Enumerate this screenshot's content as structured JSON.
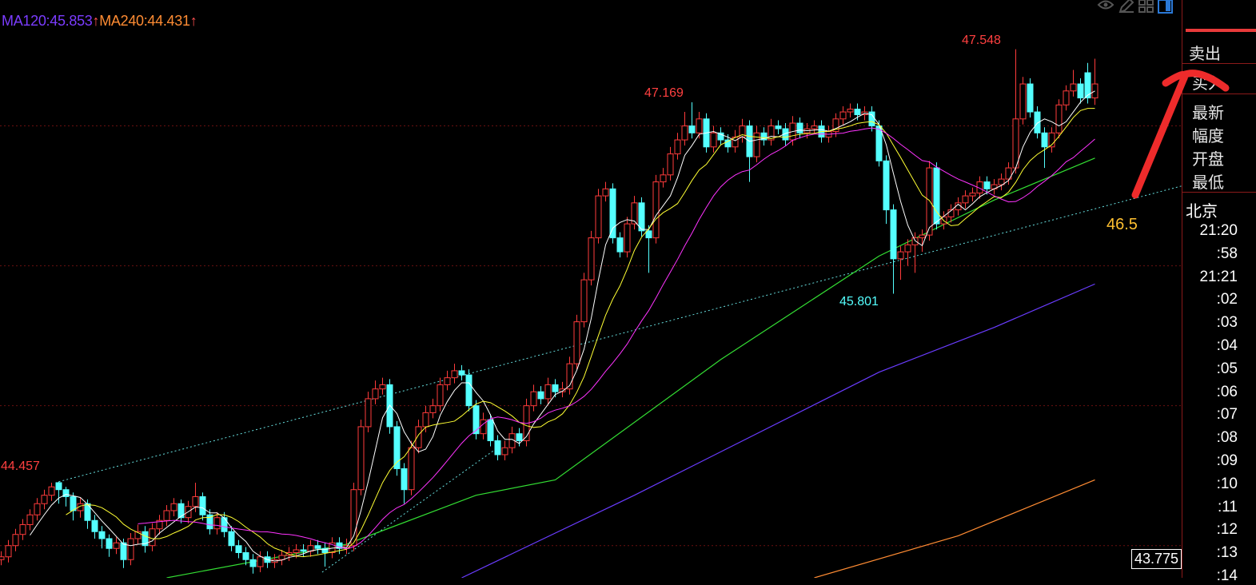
{
  "chart_data": {
    "type": "candlestick",
    "ylim": [
      43.77,
      47.9
    ],
    "grid_prices": [
      47,
      46,
      45,
      44
    ],
    "up_color": "#ff3b3b",
    "down_color": "#54ffff",
    "ohlc": [
      [
        43.9,
        43.96,
        43.86,
        43.92
      ],
      [
        43.92,
        44.04,
        43.88,
        44.0
      ],
      [
        44.0,
        44.12,
        43.96,
        44.08
      ],
      [
        44.08,
        44.19,
        44.04,
        44.15
      ],
      [
        44.15,
        44.26,
        44.11,
        44.22
      ],
      [
        44.22,
        44.34,
        44.18,
        44.3
      ],
      [
        44.3,
        44.4,
        44.26,
        44.36
      ],
      [
        44.36,
        44.45,
        44.32,
        44.42
      ],
      [
        44.45,
        44.457,
        44.3,
        44.4
      ],
      [
        44.4,
        44.42,
        44.28,
        44.35
      ],
      [
        44.35,
        44.38,
        44.18,
        44.25
      ],
      [
        44.25,
        44.34,
        44.2,
        44.3
      ],
      [
        44.3,
        44.33,
        44.12,
        44.18
      ],
      [
        44.18,
        44.22,
        44.05,
        44.1
      ],
      [
        44.1,
        44.14,
        43.98,
        44.05
      ],
      [
        44.05,
        44.08,
        43.92,
        43.98
      ],
      [
        43.98,
        44.06,
        43.94,
        44.02
      ],
      [
        44.02,
        44.05,
        43.84,
        43.9
      ],
      [
        43.9,
        44.09,
        43.86,
        44.05
      ],
      [
        44.05,
        44.15,
        44.01,
        44.1
      ],
      [
        44.1,
        44.14,
        43.95,
        44.0
      ],
      [
        44.0,
        44.16,
        43.96,
        44.12
      ],
      [
        44.12,
        44.22,
        44.08,
        44.18
      ],
      [
        44.18,
        44.29,
        44.14,
        44.25
      ],
      [
        44.25,
        44.34,
        44.21,
        44.3
      ],
      [
        44.3,
        44.33,
        44.16,
        44.2
      ],
      [
        44.2,
        44.32,
        44.16,
        44.28
      ],
      [
        44.28,
        44.45,
        44.24,
        44.35
      ],
      [
        44.35,
        44.38,
        44.18,
        44.22
      ],
      [
        44.22,
        44.26,
        44.08,
        44.12
      ],
      [
        44.12,
        44.24,
        44.08,
        44.2
      ],
      [
        44.2,
        44.24,
        44.06,
        44.1
      ],
      [
        44.1,
        44.14,
        43.96,
        44.0
      ],
      [
        44.0,
        44.04,
        43.91,
        43.95
      ],
      [
        43.95,
        43.99,
        43.86,
        43.9
      ],
      [
        43.9,
        43.94,
        43.8,
        43.85
      ],
      [
        43.85,
        43.96,
        43.81,
        43.92
      ],
      [
        43.92,
        43.96,
        43.84,
        43.88
      ],
      [
        43.88,
        43.94,
        43.84,
        43.9
      ],
      [
        43.9,
        43.97,
        43.86,
        43.93
      ],
      [
        43.93,
        43.99,
        43.89,
        43.95
      ],
      [
        43.95,
        44.01,
        43.91,
        43.97
      ],
      [
        43.97,
        44.01,
        43.92,
        43.96
      ],
      [
        43.96,
        44.04,
        43.92,
        44.0
      ],
      [
        44.0,
        44.04,
        43.94,
        43.98
      ],
      [
        43.98,
        44.02,
        43.85,
        43.95
      ],
      [
        43.95,
        44.06,
        43.91,
        44.02
      ],
      [
        44.02,
        44.06,
        43.94,
        43.98
      ],
      [
        43.98,
        44.05,
        43.94,
        44.0
      ],
      [
        44.0,
        44.45,
        43.96,
        44.4
      ],
      [
        44.4,
        44.9,
        44.36,
        44.85
      ],
      [
        44.85,
        45.1,
        44.81,
        45.05
      ],
      [
        45.05,
        45.18,
        45.01,
        45.12
      ],
      [
        45.12,
        45.2,
        45.08,
        45.15
      ],
      [
        45.15,
        45.19,
        44.8,
        44.85
      ],
      [
        44.85,
        44.89,
        44.5,
        44.55
      ],
      [
        44.55,
        44.59,
        44.3,
        44.4
      ],
      [
        44.4,
        44.75,
        44.36,
        44.7
      ],
      [
        44.7,
        44.9,
        44.66,
        44.85
      ],
      [
        44.85,
        45.0,
        44.81,
        44.95
      ],
      [
        44.95,
        45.05,
        44.91,
        45.0
      ],
      [
        45.0,
        45.2,
        44.96,
        45.15
      ],
      [
        45.15,
        45.25,
        45.11,
        45.2
      ],
      [
        45.2,
        45.3,
        45.16,
        45.25
      ],
      [
        45.25,
        45.29,
        45.18,
        45.22
      ],
      [
        45.22,
        45.26,
        44.96,
        45.0
      ],
      [
        45.0,
        45.04,
        44.76,
        44.8
      ],
      [
        44.8,
        44.95,
        44.76,
        44.9
      ],
      [
        44.9,
        44.94,
        44.71,
        44.75
      ],
      [
        44.75,
        44.79,
        44.61,
        44.65
      ],
      [
        44.65,
        44.75,
        44.61,
        44.7
      ],
      [
        44.7,
        44.85,
        44.66,
        44.8
      ],
      [
        44.8,
        44.84,
        44.71,
        44.75
      ],
      [
        44.75,
        45.05,
        44.71,
        45.0
      ],
      [
        45.0,
        45.15,
        44.96,
        45.1
      ],
      [
        45.1,
        45.14,
        45.01,
        45.05
      ],
      [
        45.05,
        45.2,
        45.01,
        45.15
      ],
      [
        45.15,
        45.19,
        45.06,
        45.1
      ],
      [
        45.1,
        45.17,
        45.06,
        45.12
      ],
      [
        45.12,
        45.35,
        45.08,
        45.3
      ],
      [
        45.3,
        45.65,
        45.26,
        45.6
      ],
      [
        45.6,
        45.95,
        45.56,
        45.9
      ],
      [
        45.9,
        46.25,
        45.86,
        46.2
      ],
      [
        46.2,
        46.55,
        46.16,
        46.5
      ],
      [
        46.5,
        46.6,
        46.46,
        46.55
      ],
      [
        46.55,
        46.59,
        46.16,
        46.2
      ],
      [
        46.2,
        46.24,
        46.06,
        46.1
      ],
      [
        46.1,
        46.35,
        46.06,
        46.3
      ],
      [
        46.3,
        46.5,
        46.26,
        46.45
      ],
      [
        46.45,
        46.49,
        46.21,
        46.25
      ],
      [
        46.25,
        46.29,
        45.95,
        46.2
      ],
      [
        46.2,
        46.65,
        46.16,
        46.6
      ],
      [
        46.6,
        46.7,
        46.56,
        46.65
      ],
      [
        46.65,
        46.85,
        46.61,
        46.8
      ],
      [
        46.8,
        46.95,
        46.76,
        46.9
      ],
      [
        46.9,
        47.1,
        46.86,
        47.0
      ],
      [
        47.0,
        47.169,
        46.91,
        46.95
      ],
      [
        46.95,
        47.1,
        46.91,
        47.05
      ],
      [
        47.05,
        47.09,
        46.81,
        46.85
      ],
      [
        46.85,
        47.0,
        46.81,
        46.95
      ],
      [
        46.95,
        46.99,
        46.86,
        46.9
      ],
      [
        46.9,
        46.94,
        46.81,
        46.85
      ],
      [
        46.85,
        46.97,
        46.81,
        46.92
      ],
      [
        46.92,
        47.05,
        46.88,
        47.0
      ],
      [
        47.0,
        47.04,
        46.6,
        46.78
      ],
      [
        46.78,
        47.0,
        46.74,
        46.95
      ],
      [
        46.95,
        46.99,
        46.86,
        46.9
      ],
      [
        46.9,
        47.05,
        46.86,
        47.0
      ],
      [
        47.0,
        47.04,
        46.94,
        46.98
      ],
      [
        46.98,
        47.02,
        46.86,
        46.9
      ],
      [
        46.9,
        47.07,
        46.86,
        47.02
      ],
      [
        47.02,
        47.06,
        46.91,
        46.95
      ],
      [
        46.95,
        47.02,
        46.91,
        46.98
      ],
      [
        46.98,
        47.04,
        46.94,
        47.0
      ],
      [
        47.0,
        47.04,
        46.88,
        46.92
      ],
      [
        46.92,
        47.0,
        46.88,
        46.96
      ],
      [
        46.96,
        47.09,
        46.92,
        47.05
      ],
      [
        47.05,
        47.14,
        47.01,
        47.1
      ],
      [
        47.1,
        47.16,
        47.06,
        47.12
      ],
      [
        47.12,
        47.16,
        47.04,
        47.08
      ],
      [
        47.08,
        47.14,
        47.04,
        47.1
      ],
      [
        47.1,
        47.14,
        46.96,
        47.0
      ],
      [
        47.0,
        47.04,
        46.71,
        46.75
      ],
      [
        46.75,
        46.79,
        46.3,
        46.4
      ],
      [
        46.4,
        46.44,
        45.801,
        46.05
      ],
      [
        46.05,
        46.14,
        45.9,
        46.1
      ],
      [
        46.1,
        46.19,
        46.0,
        46.15
      ],
      [
        46.15,
        46.24,
        45.95,
        46.2
      ],
      [
        46.2,
        46.26,
        46.1,
        46.22
      ],
      [
        46.22,
        46.75,
        46.18,
        46.7
      ],
      [
        46.7,
        46.74,
        46.26,
        46.3
      ],
      [
        46.3,
        46.39,
        46.26,
        46.35
      ],
      [
        46.35,
        46.44,
        46.31,
        46.4
      ],
      [
        46.4,
        46.49,
        46.36,
        46.45
      ],
      [
        46.45,
        46.54,
        46.41,
        46.5
      ],
      [
        46.5,
        46.56,
        46.46,
        46.52
      ],
      [
        46.52,
        46.64,
        46.48,
        46.6
      ],
      [
        46.6,
        46.64,
        46.51,
        46.55
      ],
      [
        46.55,
        46.62,
        46.51,
        46.58
      ],
      [
        46.58,
        46.66,
        46.54,
        46.62
      ],
      [
        46.62,
        46.74,
        46.58,
        46.7
      ],
      [
        46.7,
        47.548,
        46.66,
        47.05
      ],
      [
        47.05,
        47.35,
        47.01,
        47.3
      ],
      [
        47.3,
        47.34,
        47.06,
        47.1
      ],
      [
        47.1,
        47.14,
        46.91,
        46.95
      ],
      [
        46.95,
        46.99,
        46.7,
        46.85
      ],
      [
        46.85,
        46.99,
        46.81,
        46.95
      ],
      [
        46.95,
        47.19,
        46.91,
        47.15
      ],
      [
        47.15,
        47.29,
        47.11,
        47.25
      ],
      [
        47.25,
        47.4,
        47.21,
        47.3
      ],
      [
        47.3,
        47.34,
        47.16,
        47.2
      ],
      [
        47.38,
        47.45,
        47.16,
        47.2
      ],
      [
        47.2,
        47.48,
        47.15,
        47.3
      ]
    ],
    "ma_computed": [
      {
        "period": 5,
        "color": "#ffffff"
      },
      {
        "period": 10,
        "color": "#ffff33"
      },
      {
        "period": 20,
        "color": "#ff33ff"
      }
    ],
    "ma_lines": [
      {
        "period": 60,
        "color": "#33dd33",
        "points": [
          [
            23,
            43.77
          ],
          [
            48,
            44.01
          ],
          [
            66,
            44.36
          ],
          [
            77,
            44.47
          ],
          [
            100,
            45.33
          ],
          [
            122,
            46.07
          ],
          [
            138,
            46.47
          ],
          [
            152,
            46.77
          ]
        ]
      },
      {
        "period": 120,
        "color": "#6a3cff",
        "points": [
          [
            64,
            43.77
          ],
          [
            88,
            44.36
          ],
          [
            122,
            45.24
          ],
          [
            138,
            45.56
          ],
          [
            152,
            45.87
          ]
        ]
      },
      {
        "period": 240,
        "color": "#ff8c33",
        "points": [
          [
            113,
            43.77
          ],
          [
            133,
            44.07
          ],
          [
            152,
            44.47
          ]
        ]
      }
    ],
    "trendlines": [
      {
        "color": "#66dddd",
        "from": [
          8,
          44.457
        ],
        "to": [
          164,
          46.57
        ]
      },
      {
        "color": "#66dddd",
        "from": [
          44.6,
          43.81
        ],
        "to": [
          69,
          44.7
        ]
      }
    ],
    "annotations": {
      "high": "47.548",
      "high2": "47.169",
      "low": "45.801",
      "left_high": "44.457",
      "trend_value": "46.5",
      "cursor_price": "43.775"
    }
  },
  "legend": {
    "ma120": "MA120:45.853",
    "ma120_arrow": "↑",
    "ma240": "MA240:44.431",
    "ma240_arrow": "↑",
    "ma120_color": "#7b3cff",
    "ma240_color": "#ff8c33"
  },
  "panel": {
    "labels": [
      "卖出",
      "买入",
      "最新",
      "幅度",
      "开盘",
      "最低"
    ],
    "region": "北京",
    "times": [
      "21:20",
      ":58",
      "21:21",
      ":02",
      ":03",
      ":04",
      ":05",
      ":06",
      ":07",
      ":08",
      ":09",
      ":10",
      ":11",
      ":12",
      ":13",
      ":14"
    ]
  },
  "toolbar": {
    "icons": [
      "eye-icon",
      "pencil-icon",
      "grid-icon",
      "panel-icon"
    ]
  }
}
